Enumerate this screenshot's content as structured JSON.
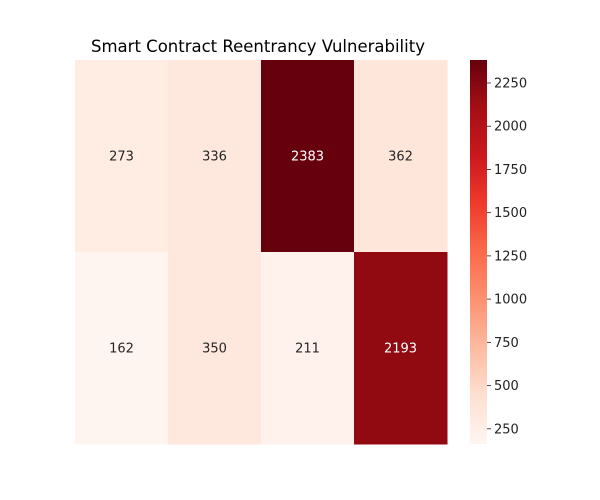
{
  "chart_data": {
    "type": "heatmap",
    "title": "Smart Contract Reentrancy Vulnerability",
    "rows": 2,
    "cols": 4,
    "values": [
      [
        273,
        336,
        2383,
        362
      ],
      [
        162,
        350,
        211,
        2193
      ]
    ],
    "colormap": "Reds",
    "colorbar": {
      "min": 162,
      "max": 2383,
      "ticks": [
        250,
        500,
        750,
        1000,
        1250,
        1500,
        1750,
        2000,
        2250
      ]
    },
    "xlabel": "",
    "ylabel": "",
    "axes_visible": false
  }
}
